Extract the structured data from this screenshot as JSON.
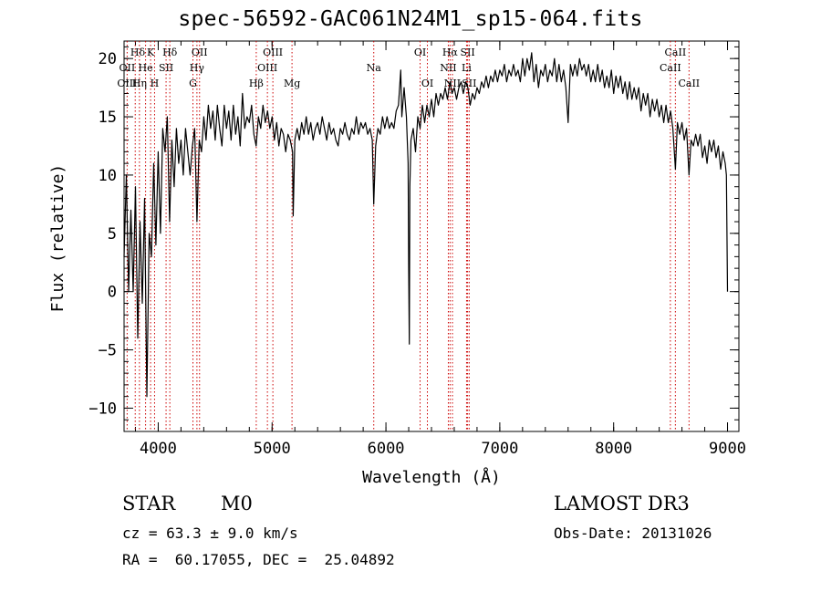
{
  "chart_data": {
    "type": "line",
    "title": "spec-56592-GAC061N24M1_sp15-064.fits",
    "xlabel": "Wavelength (Å)",
    "ylabel": "Flux (relative)",
    "xlim": [
      3700,
      9100
    ],
    "ylim": [
      -12,
      21.5
    ],
    "xticks": [
      4000,
      5000,
      6000,
      7000,
      8000,
      9000
    ],
    "yticks": [
      -10,
      -5,
      0,
      5,
      10,
      15,
      20
    ],
    "x_minor_step": 200,
    "y_minor_step": 1,
    "grid": false,
    "series": [
      {
        "name": "spectrum",
        "color": "#000000",
        "points": [
          [
            3700,
            3
          ],
          [
            3720,
            10
          ],
          [
            3740,
            0
          ],
          [
            3760,
            7
          ],
          [
            3780,
            0
          ],
          [
            3800,
            9
          ],
          [
            3820,
            -4
          ],
          [
            3840,
            6
          ],
          [
            3860,
            -1
          ],
          [
            3880,
            8
          ],
          [
            3900,
            -9
          ],
          [
            3920,
            5
          ],
          [
            3940,
            3
          ],
          [
            3960,
            11
          ],
          [
            3980,
            4
          ],
          [
            4000,
            12
          ],
          [
            4020,
            5
          ],
          [
            4040,
            14
          ],
          [
            4060,
            12
          ],
          [
            4080,
            15
          ],
          [
            4100,
            6
          ],
          [
            4120,
            13
          ],
          [
            4140,
            9
          ],
          [
            4160,
            14
          ],
          [
            4180,
            11
          ],
          [
            4200,
            13
          ],
          [
            4220,
            10
          ],
          [
            4240,
            14
          ],
          [
            4260,
            12
          ],
          [
            4280,
            10
          ],
          [
            4300,
            12.5
          ],
          [
            4320,
            14
          ],
          [
            4340,
            6
          ],
          [
            4360,
            13
          ],
          [
            4380,
            12
          ],
          [
            4400,
            15
          ],
          [
            4420,
            13
          ],
          [
            4440,
            16
          ],
          [
            4460,
            14
          ],
          [
            4480,
            15.5
          ],
          [
            4500,
            13
          ],
          [
            4520,
            16
          ],
          [
            4540,
            14
          ],
          [
            4560,
            12.5
          ],
          [
            4580,
            16
          ],
          [
            4600,
            14
          ],
          [
            4620,
            15.5
          ],
          [
            4640,
            13
          ],
          [
            4660,
            16
          ],
          [
            4680,
            13.5
          ],
          [
            4700,
            15
          ],
          [
            4720,
            12.5
          ],
          [
            4740,
            17
          ],
          [
            4760,
            14
          ],
          [
            4780,
            15
          ],
          [
            4800,
            14.5
          ],
          [
            4820,
            16
          ],
          [
            4840,
            13.5
          ],
          [
            4860,
            12.5
          ],
          [
            4880,
            15
          ],
          [
            4900,
            14
          ],
          [
            4920,
            16
          ],
          [
            4940,
            14.5
          ],
          [
            4960,
            15.5
          ],
          [
            4980,
            14
          ],
          [
            5000,
            15
          ],
          [
            5020,
            13
          ],
          [
            5040,
            14.5
          ],
          [
            5060,
            12.5
          ],
          [
            5080,
            14
          ],
          [
            5100,
            13.5
          ],
          [
            5120,
            12
          ],
          [
            5140,
            13.5
          ],
          [
            5160,
            13
          ],
          [
            5180,
            12
          ],
          [
            5185,
            6.5
          ],
          [
            5200,
            13
          ],
          [
            5220,
            14
          ],
          [
            5240,
            13
          ],
          [
            5260,
            14.5
          ],
          [
            5280,
            13.5
          ],
          [
            5300,
            15
          ],
          [
            5320,
            13.5
          ],
          [
            5340,
            14.5
          ],
          [
            5360,
            13
          ],
          [
            5380,
            14
          ],
          [
            5400,
            14.5
          ],
          [
            5420,
            13.5
          ],
          [
            5440,
            15
          ],
          [
            5460,
            14
          ],
          [
            5480,
            13
          ],
          [
            5500,
            14.5
          ],
          [
            5520,
            13.5
          ],
          [
            5540,
            14
          ],
          [
            5560,
            13
          ],
          [
            5580,
            12.5
          ],
          [
            5600,
            14
          ],
          [
            5620,
            13.5
          ],
          [
            5640,
            14.5
          ],
          [
            5660,
            13.5
          ],
          [
            5680,
            13
          ],
          [
            5700,
            14
          ],
          [
            5720,
            13.5
          ],
          [
            5740,
            15
          ],
          [
            5760,
            13.5
          ],
          [
            5780,
            14.5
          ],
          [
            5800,
            14
          ],
          [
            5820,
            14.5
          ],
          [
            5840,
            13.5
          ],
          [
            5860,
            14
          ],
          [
            5880,
            13
          ],
          [
            5893,
            7.5
          ],
          [
            5910,
            12.5
          ],
          [
            5930,
            14
          ],
          [
            5950,
            13.5
          ],
          [
            5970,
            15
          ],
          [
            5990,
            14
          ],
          [
            6010,
            15
          ],
          [
            6030,
            14
          ],
          [
            6050,
            14.5
          ],
          [
            6070,
            14
          ],
          [
            6090,
            15.5
          ],
          [
            6110,
            16
          ],
          [
            6130,
            19
          ],
          [
            6140,
            15
          ],
          [
            6160,
            17.5
          ],
          [
            6180,
            15
          ],
          [
            6195,
            11
          ],
          [
            6200,
            2
          ],
          [
            6205,
            -4.5
          ],
          [
            6210,
            9
          ],
          [
            6220,
            13
          ],
          [
            6240,
            14
          ],
          [
            6260,
            12
          ],
          [
            6280,
            15
          ],
          [
            6300,
            14
          ],
          [
            6320,
            16
          ],
          [
            6340,
            14.5
          ],
          [
            6360,
            16
          ],
          [
            6380,
            15
          ],
          [
            6400,
            16.5
          ],
          [
            6420,
            15
          ],
          [
            6440,
            17
          ],
          [
            6460,
            16
          ],
          [
            6480,
            17
          ],
          [
            6500,
            16.5
          ],
          [
            6520,
            17.5
          ],
          [
            6540,
            16.5
          ],
          [
            6563,
            18
          ],
          [
            6580,
            17
          ],
          [
            6600,
            17.5
          ],
          [
            6620,
            16.5
          ],
          [
            6640,
            17.5
          ],
          [
            6660,
            18
          ],
          [
            6680,
            17
          ],
          [
            6700,
            18
          ],
          [
            6720,
            17.5
          ],
          [
            6740,
            16
          ],
          [
            6760,
            17
          ],
          [
            6780,
            16.5
          ],
          [
            6800,
            17.5
          ],
          [
            6820,
            17
          ],
          [
            6840,
            18
          ],
          [
            6860,
            17.5
          ],
          [
            6880,
            18.5
          ],
          [
            6900,
            17.5
          ],
          [
            6920,
            18.5
          ],
          [
            6940,
            18
          ],
          [
            6960,
            19
          ],
          [
            6980,
            18
          ],
          [
            7000,
            19
          ],
          [
            7020,
            18.5
          ],
          [
            7040,
            19.5
          ],
          [
            7060,
            18
          ],
          [
            7080,
            19
          ],
          [
            7100,
            18.5
          ],
          [
            7120,
            19.5
          ],
          [
            7140,
            18.5
          ],
          [
            7160,
            19
          ],
          [
            7180,
            18
          ],
          [
            7200,
            20
          ],
          [
            7220,
            18.5
          ],
          [
            7240,
            20
          ],
          [
            7260,
            19
          ],
          [
            7280,
            20.5
          ],
          [
            7300,
            18
          ],
          [
            7320,
            19.5
          ],
          [
            7340,
            17.5
          ],
          [
            7360,
            19
          ],
          [
            7380,
            18.5
          ],
          [
            7400,
            19.5
          ],
          [
            7420,
            18
          ],
          [
            7440,
            19
          ],
          [
            7460,
            18.5
          ],
          [
            7480,
            20
          ],
          [
            7500,
            18
          ],
          [
            7520,
            19.5
          ],
          [
            7540,
            18
          ],
          [
            7560,
            19
          ],
          [
            7580,
            17.5
          ],
          [
            7600,
            14.5
          ],
          [
            7620,
            19.5
          ],
          [
            7640,
            18.5
          ],
          [
            7660,
            19.5
          ],
          [
            7680,
            18.5
          ],
          [
            7700,
            20
          ],
          [
            7720,
            19
          ],
          [
            7740,
            19.5
          ],
          [
            7760,
            18.5
          ],
          [
            7780,
            19.5
          ],
          [
            7800,
            18
          ],
          [
            7820,
            19
          ],
          [
            7840,
            18
          ],
          [
            7860,
            19.5
          ],
          [
            7880,
            18
          ],
          [
            7900,
            19
          ],
          [
            7920,
            17.5
          ],
          [
            7940,
            18.5
          ],
          [
            7960,
            17.5
          ],
          [
            7980,
            19
          ],
          [
            8000,
            17
          ],
          [
            8020,
            18.5
          ],
          [
            8040,
            17.5
          ],
          [
            8060,
            18.5
          ],
          [
            8080,
            17
          ],
          [
            8100,
            18
          ],
          [
            8120,
            16.5
          ],
          [
            8140,
            18
          ],
          [
            8160,
            16.5
          ],
          [
            8180,
            17.5
          ],
          [
            8200,
            16.5
          ],
          [
            8220,
            17.5
          ],
          [
            8240,
            15.5
          ],
          [
            8260,
            17
          ],
          [
            8280,
            16
          ],
          [
            8300,
            17
          ],
          [
            8320,
            15
          ],
          [
            8340,
            16.5
          ],
          [
            8360,
            15.5
          ],
          [
            8380,
            16.5
          ],
          [
            8400,
            15
          ],
          [
            8420,
            16
          ],
          [
            8440,
            14.5
          ],
          [
            8460,
            16
          ],
          [
            8480,
            14.5
          ],
          [
            8500,
            15.5
          ],
          [
            8520,
            14
          ],
          [
            8542,
            10.5
          ],
          [
            8560,
            14.5
          ],
          [
            8580,
            13.5
          ],
          [
            8600,
            14.5
          ],
          [
            8620,
            13
          ],
          [
            8640,
            14
          ],
          [
            8662,
            10
          ],
          [
            8680,
            13
          ],
          [
            8700,
            12.5
          ],
          [
            8720,
            13.5
          ],
          [
            8740,
            12.5
          ],
          [
            8760,
            13.5
          ],
          [
            8780,
            11.5
          ],
          [
            8800,
            12.5
          ],
          [
            8820,
            11
          ],
          [
            8840,
            13
          ],
          [
            8860,
            12
          ],
          [
            8880,
            13
          ],
          [
            8900,
            11.5
          ],
          [
            8920,
            12.5
          ],
          [
            8940,
            10.5
          ],
          [
            8960,
            12
          ],
          [
            8980,
            11
          ],
          [
            8990,
            10
          ],
          [
            9000,
            0
          ]
        ]
      }
    ],
    "line_color": "#cc0000",
    "annotations": [
      {
        "label": "Hδ",
        "x": 3820,
        "row": 1
      },
      {
        "label": "K",
        "x": 3933,
        "row": 1
      },
      {
        "label": "Hδ",
        "x": 4102,
        "row": 1
      },
      {
        "label": "OII",
        "x": 4363,
        "row": 1
      },
      {
        "label": "OIII",
        "x": 5007,
        "row": 1
      },
      {
        "label": "OI",
        "x": 6300,
        "row": 1
      },
      {
        "label": "Hα",
        "x": 6563,
        "row": 1
      },
      {
        "label": "SII",
        "x": 6717,
        "row": 1
      },
      {
        "label": "CaII",
        "x": 8542,
        "row": 1
      },
      {
        "label": "OII",
        "x": 3727,
        "row": 2
      },
      {
        "label": "He",
        "x": 3889,
        "row": 2
      },
      {
        "label": "SII",
        "x": 4069,
        "row": 2
      },
      {
        "label": "Hγ",
        "x": 4340,
        "row": 2
      },
      {
        "label": "OIII",
        "x": 4959,
        "row": 2
      },
      {
        "label": "Na",
        "x": 5893,
        "row": 2
      },
      {
        "label": "NII",
        "x": 6548,
        "row": 2
      },
      {
        "label": "Li",
        "x": 6708,
        "row": 2
      },
      {
        "label": "CaII",
        "x": 8498,
        "row": 2
      },
      {
        "label": "OIII",
        "x": 3727,
        "row": 3
      },
      {
        "label": "Hη",
        "x": 3835,
        "row": 3
      },
      {
        "label": "H",
        "x": 3968,
        "row": 3
      },
      {
        "label": "G",
        "x": 4305,
        "row": 3
      },
      {
        "label": "Hβ",
        "x": 4861,
        "row": 3
      },
      {
        "label": "Mg",
        "x": 5175,
        "row": 3
      },
      {
        "label": "OI",
        "x": 6364,
        "row": 3
      },
      {
        "label": "NII",
        "x": 6584,
        "row": 3
      },
      {
        "label": "SII",
        "x": 6731,
        "row": 3
      },
      {
        "label": "CaII",
        "x": 8662,
        "row": 3
      }
    ],
    "lines": [
      3727,
      3798,
      3835,
      3889,
      3933,
      3968,
      4069,
      4102,
      4305,
      4340,
      4363,
      4861,
      4959,
      5007,
      5175,
      5893,
      6300,
      6364,
      6548,
      6563,
      6584,
      6708,
      6717,
      6731,
      8498,
      8542,
      8662
    ]
  },
  "info": {
    "class_label": "STAR",
    "subclass": "M0",
    "survey": "LAMOST DR3",
    "redshift": "cz = 63.3 ± 9.0 km/s",
    "obs_date": "Obs-Date: 20131026",
    "coords": "RA =  60.17055, DEC =  25.04892"
  }
}
